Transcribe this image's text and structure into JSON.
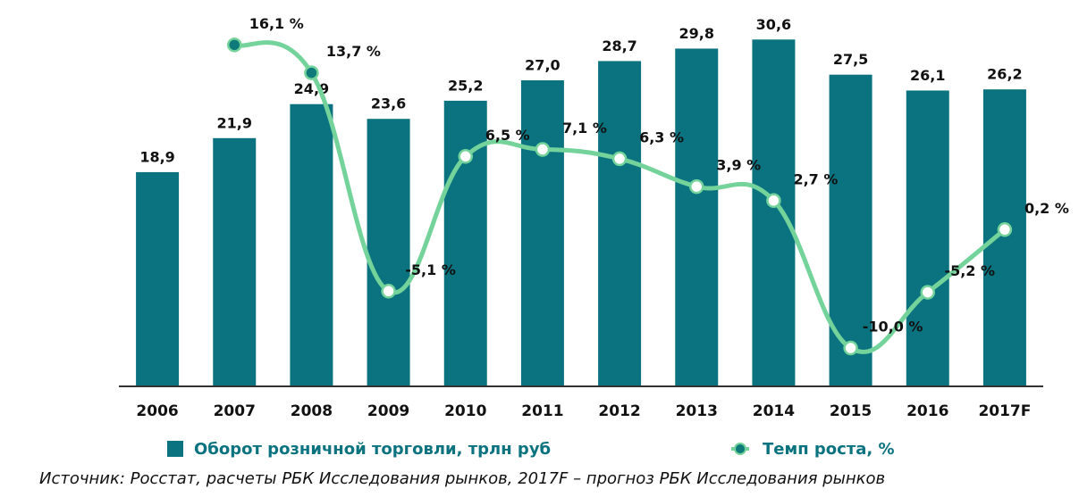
{
  "chart_data": {
    "type": "bar_line",
    "categories": [
      "2006",
      "2007",
      "2008",
      "2009",
      "2010",
      "2011",
      "2012",
      "2013",
      "2014",
      "2015",
      "2016",
      "2017F"
    ],
    "series": [
      {
        "name": "Оборот розничной торговли, трлн руб",
        "type": "bar",
        "color": "#0b737f",
        "values": [
          18.9,
          21.9,
          24.9,
          23.6,
          25.2,
          27.0,
          28.7,
          29.8,
          30.6,
          27.5,
          26.1,
          26.2
        ],
        "value_labels": [
          "18,9",
          "21,9",
          "24,9",
          "23,6",
          "25,2",
          "27,0",
          "28,7",
          "29,8",
          "30,6",
          "27,5",
          "26,1",
          "26,2"
        ]
      },
      {
        "name": "Темп роста, %",
        "type": "line",
        "axis": "y2",
        "color": "#74d39a",
        "marker_color": "#0e7a7a",
        "values": [
          null,
          16.1,
          13.7,
          -5.1,
          6.5,
          7.1,
          6.3,
          3.9,
          2.7,
          -10.0,
          -5.2,
          0.2
        ],
        "value_labels": [
          null,
          "16,1 %",
          "13,7 %",
          "-5,1 %",
          "6,5 %",
          "7,1 %",
          "6,3 %",
          "3,9 %",
          "2,7 %",
          "-10,0 %",
          "-5,2 %",
          "0,2 %"
        ]
      }
    ],
    "ylim": [
      0,
      33.3
    ],
    "y2lim": [
      -13.3,
      19.2
    ],
    "grid": false,
    "legend": "bottom",
    "source": "Источник: Росстат, расчеты РБК Исследования рынков, 2017F – прогноз РБК Исследования рынков"
  }
}
